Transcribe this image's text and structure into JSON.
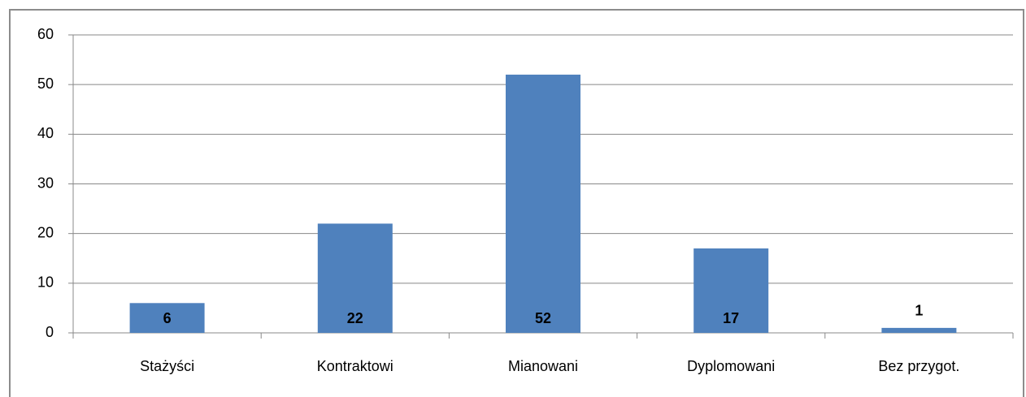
{
  "chart_data": {
    "type": "bar",
    "categories": [
      "Stażyści",
      "Kontraktowi",
      "Mianowani",
      "Dyplomowani",
      "Bez przygot."
    ],
    "values": [
      6,
      22,
      52,
      17,
      1
    ],
    "color": "#4f81bd",
    "ylim": [
      0,
      60
    ],
    "yticks": [
      0,
      10,
      20,
      30,
      40,
      50,
      60
    ],
    "grid": true
  }
}
